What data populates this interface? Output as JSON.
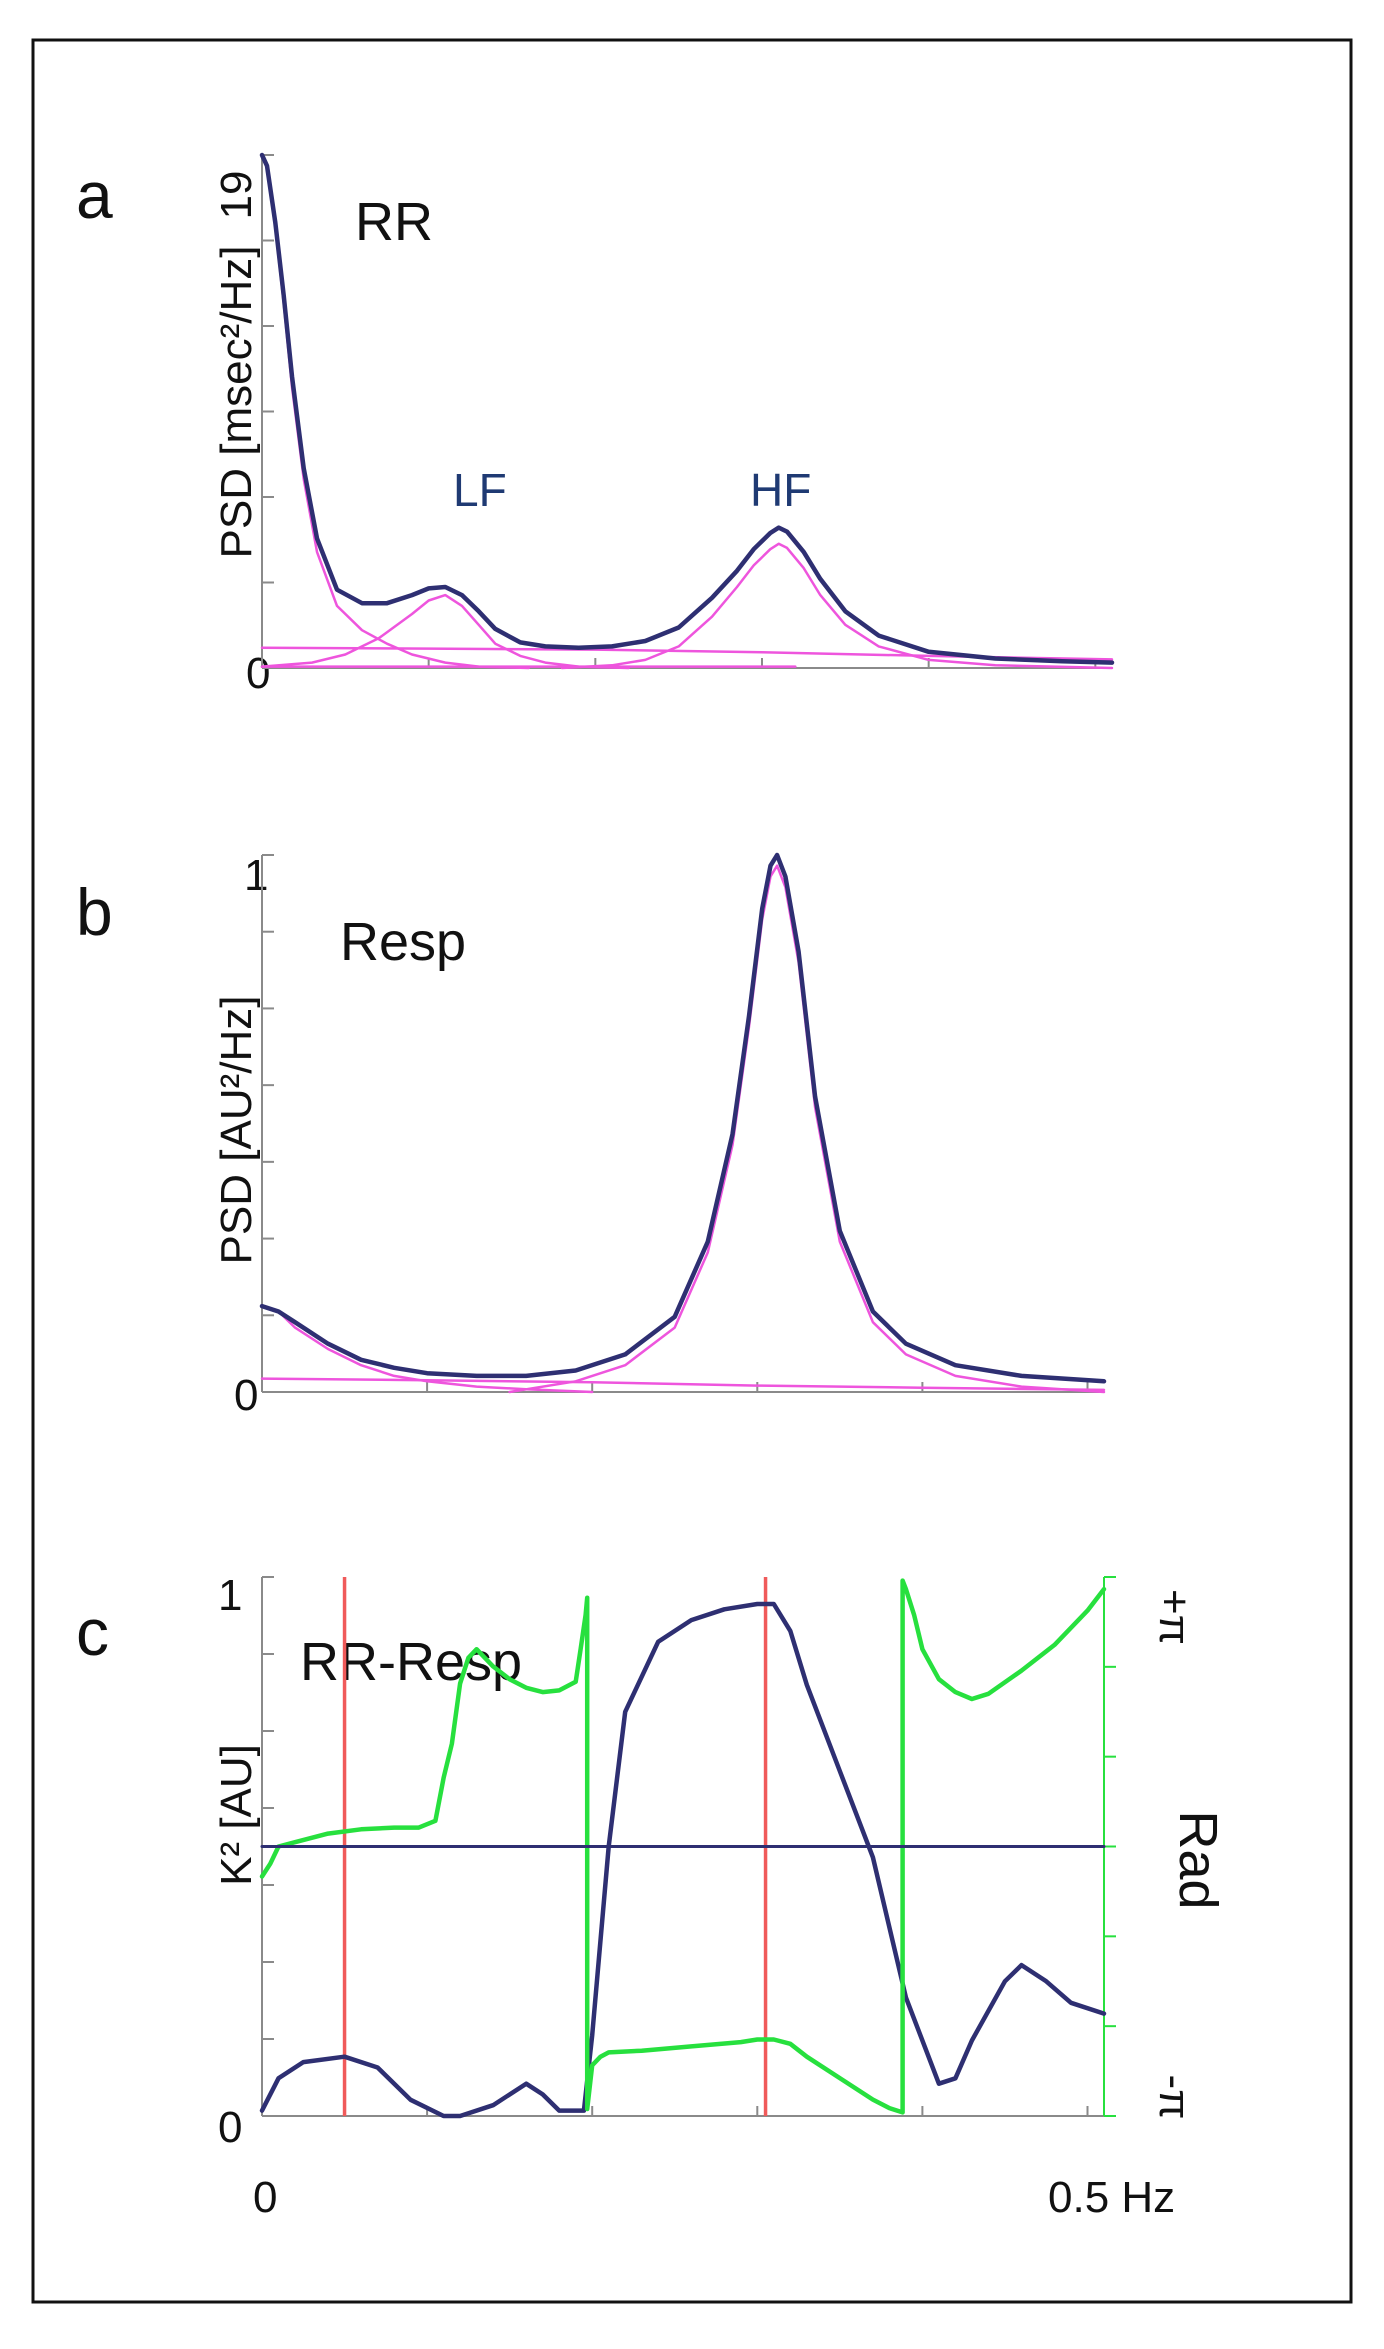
{
  "colors": {
    "psd_total": "#2e2f72",
    "psd_component": "#ee55dd",
    "coherence": "#2e2f72",
    "phase": "#27e03e",
    "marker": "#f05a5a",
    "axis": "#8a8a8a",
    "frame": "#111111",
    "peak_label": "#1f3a73"
  },
  "chart_data": [
    {
      "panel": "a",
      "type": "line",
      "title": "RR",
      "ylabel": "PSD  [msec²/Hz]",
      "xlim": [
        0,
        0.51
      ],
      "ylim": [
        0,
        19
      ],
      "y_tick_labels": [
        "0",
        "19"
      ],
      "annotations": [
        {
          "text": "LF",
          "x": 0.11
        },
        {
          "text": "HF",
          "x": 0.31
        }
      ],
      "series": [
        {
          "role": "total",
          "x": [
            0,
            0.003,
            0.008,
            0.013,
            0.018,
            0.025,
            0.033,
            0.045,
            0.06,
            0.075,
            0.09,
            0.1,
            0.11,
            0.12,
            0.13,
            0.14,
            0.155,
            0.17,
            0.19,
            0.21,
            0.23,
            0.25,
            0.27,
            0.285,
            0.295,
            0.305,
            0.31,
            0.315,
            0.325,
            0.335,
            0.35,
            0.37,
            0.4,
            0.44,
            0.48,
            0.51
          ],
          "y": [
            19,
            18.6,
            16.5,
            13.8,
            10.8,
            7.4,
            4.8,
            2.9,
            2.4,
            2.4,
            2.7,
            2.95,
            3.0,
            2.7,
            2.1,
            1.45,
            0.95,
            0.8,
            0.75,
            0.8,
            1.0,
            1.5,
            2.6,
            3.6,
            4.4,
            5.0,
            5.2,
            5.05,
            4.3,
            3.3,
            2.1,
            1.2,
            0.6,
            0.35,
            0.25,
            0.2
          ]
        },
        {
          "role": "component-vlf",
          "x": [
            0,
            0.003,
            0.008,
            0.013,
            0.018,
            0.025,
            0.033,
            0.045,
            0.06,
            0.075,
            0.09,
            0.11,
            0.13,
            0.16
          ],
          "y": [
            19,
            18.5,
            16.3,
            13.5,
            10.4,
            7.0,
            4.3,
            2.3,
            1.4,
            0.9,
            0.5,
            0.2,
            0.05,
            0
          ]
        },
        {
          "role": "component-lf",
          "x": [
            0,
            0.03,
            0.05,
            0.07,
            0.09,
            0.1,
            0.11,
            0.12,
            0.13,
            0.14,
            0.155,
            0.17,
            0.19,
            0.22
          ],
          "y": [
            0.05,
            0.2,
            0.5,
            1.1,
            2.0,
            2.5,
            2.7,
            2.3,
            1.6,
            0.9,
            0.45,
            0.2,
            0.05,
            0
          ]
        },
        {
          "role": "component-base",
          "x": [
            0,
            0.1,
            0.2,
            0.3,
            0.4,
            0.51
          ],
          "y": [
            0.75,
            0.72,
            0.68,
            0.58,
            0.45,
            0.32
          ]
        },
        {
          "role": "component-hf",
          "x": [
            0.18,
            0.21,
            0.23,
            0.25,
            0.27,
            0.285,
            0.295,
            0.305,
            0.31,
            0.315,
            0.325,
            0.335,
            0.35,
            0.37,
            0.4,
            0.44,
            0.51
          ],
          "y": [
            0,
            0.1,
            0.3,
            0.8,
            1.9,
            3.0,
            3.8,
            4.4,
            4.6,
            4.45,
            3.7,
            2.7,
            1.6,
            0.8,
            0.3,
            0.1,
            0
          ]
        },
        {
          "role": "component-zero",
          "x": [
            0,
            0.32
          ],
          "y": [
            0.05,
            0.05
          ]
        }
      ]
    },
    {
      "panel": "b",
      "type": "line",
      "title": "Resp",
      "ylabel": "PSD  [AU²/Hz]",
      "xlim": [
        0,
        0.51
      ],
      "ylim": [
        0,
        1
      ],
      "y_tick_labels": [
        "0",
        "1"
      ],
      "series": [
        {
          "role": "total",
          "x": [
            0,
            0.01,
            0.02,
            0.04,
            0.06,
            0.08,
            0.1,
            0.13,
            0.16,
            0.19,
            0.22,
            0.25,
            0.27,
            0.285,
            0.295,
            0.303,
            0.308,
            0.312,
            0.317,
            0.325,
            0.335,
            0.35,
            0.37,
            0.39,
            0.42,
            0.46,
            0.51
          ],
          "y": [
            0.16,
            0.15,
            0.13,
            0.09,
            0.06,
            0.045,
            0.035,
            0.03,
            0.03,
            0.04,
            0.07,
            0.14,
            0.28,
            0.48,
            0.7,
            0.9,
            0.98,
            1.0,
            0.96,
            0.82,
            0.55,
            0.3,
            0.15,
            0.09,
            0.05,
            0.03,
            0.02
          ]
        },
        {
          "role": "component-low",
          "x": [
            0,
            0.01,
            0.02,
            0.04,
            0.06,
            0.08,
            0.1,
            0.13,
            0.16,
            0.2
          ],
          "y": [
            0.16,
            0.15,
            0.12,
            0.08,
            0.05,
            0.03,
            0.02,
            0.01,
            0.005,
            0
          ]
        },
        {
          "role": "component-base",
          "x": [
            0,
            0.1,
            0.2,
            0.3,
            0.4,
            0.51
          ],
          "y": [
            0.025,
            0.022,
            0.018,
            0.012,
            0.008,
            0.004
          ]
        },
        {
          "role": "component-hf",
          "x": [
            0.15,
            0.19,
            0.22,
            0.25,
            0.27,
            0.285,
            0.295,
            0.303,
            0.308,
            0.312,
            0.317,
            0.325,
            0.335,
            0.35,
            0.37,
            0.39,
            0.42,
            0.46,
            0.51
          ],
          "y": [
            0,
            0.02,
            0.05,
            0.12,
            0.26,
            0.46,
            0.68,
            0.88,
            0.96,
            0.98,
            0.94,
            0.8,
            0.53,
            0.28,
            0.13,
            0.07,
            0.03,
            0.01,
            0
          ]
        }
      ]
    },
    {
      "panel": "c",
      "type": "line",
      "title": "RR-Resp",
      "ylabel": "K² [AU]",
      "y2label": "Rad",
      "xlim": [
        0,
        0.51
      ],
      "ylim": [
        0,
        1
      ],
      "y2lim": [
        -3.1416,
        3.1416
      ],
      "y_tick_labels": [
        "0",
        "1"
      ],
      "y2_tick_labels": [
        "-π",
        "+π"
      ],
      "x_tick_labels": [
        {
          "x": 0,
          "label": "0"
        },
        {
          "x": 0.5,
          "label": "0.5 Hz"
        }
      ],
      "markers_x": [
        0.05,
        0.305
      ],
      "series": [
        {
          "role": "coherence",
          "x": [
            0,
            0.01,
            0.025,
            0.05,
            0.07,
            0.09,
            0.11,
            0.12,
            0.14,
            0.16,
            0.17,
            0.18,
            0.195,
            0.2,
            0.21,
            0.22,
            0.24,
            0.26,
            0.28,
            0.3,
            0.31,
            0.32,
            0.33,
            0.35,
            0.37,
            0.39,
            0.41,
            0.42,
            0.43,
            0.45,
            0.46,
            0.475,
            0.49,
            0.51
          ],
          "y": [
            0.01,
            0.07,
            0.1,
            0.11,
            0.09,
            0.03,
            0,
            0,
            0.02,
            0.06,
            0.04,
            0.01,
            0.01,
            0.15,
            0.5,
            0.75,
            0.88,
            0.92,
            0.94,
            0.95,
            0.95,
            0.9,
            0.8,
            0.64,
            0.48,
            0.22,
            0.06,
            0.07,
            0.14,
            0.25,
            0.28,
            0.25,
            0.21,
            0.19
          ]
        },
        {
          "role": "phase",
          "axis": "y2",
          "x": [
            0,
            0.005,
            0.01,
            0.02,
            0.04,
            0.06,
            0.08,
            0.095,
            0.105,
            0.11,
            0.115,
            0.12,
            0.125,
            0.13,
            0.14,
            0.15,
            0.16,
            0.17,
            0.18,
            0.19,
            0.193,
            0.196,
            0.197,
            0.197,
            0.2,
            0.205,
            0.21,
            0.23,
            0.26,
            0.29,
            0.3,
            0.31,
            0.32,
            0.33,
            0.35,
            0.37,
            0.38,
            0.388,
            0.388,
            0.39,
            0.395,
            0.4,
            0.41,
            0.42,
            0.43,
            0.44,
            0.46,
            0.48,
            0.5,
            0.51
          ],
          "y": [
            -0.35,
            -0.2,
            0,
            0.05,
            0.15,
            0.2,
            0.22,
            0.22,
            0.3,
            0.8,
            1.2,
            1.9,
            2.2,
            2.3,
            2.1,
            1.95,
            1.85,
            1.8,
            1.82,
            1.92,
            2.3,
            2.7,
            2.9,
            -3.06,
            -2.55,
            -2.45,
            -2.4,
            -2.38,
            -2.33,
            -2.28,
            -2.25,
            -2.25,
            -2.3,
            -2.45,
            -2.7,
            -2.95,
            -3.05,
            -3.1,
            3.1,
            3.0,
            2.7,
            2.3,
            1.95,
            1.8,
            1.72,
            1.78,
            2.05,
            2.35,
            2.75,
            3.0
          ]
        },
        {
          "role": "zero-line",
          "axis": "y2",
          "x": [
            0,
            0.51
          ],
          "y": [
            0,
            0
          ]
        }
      ]
    }
  ]
}
